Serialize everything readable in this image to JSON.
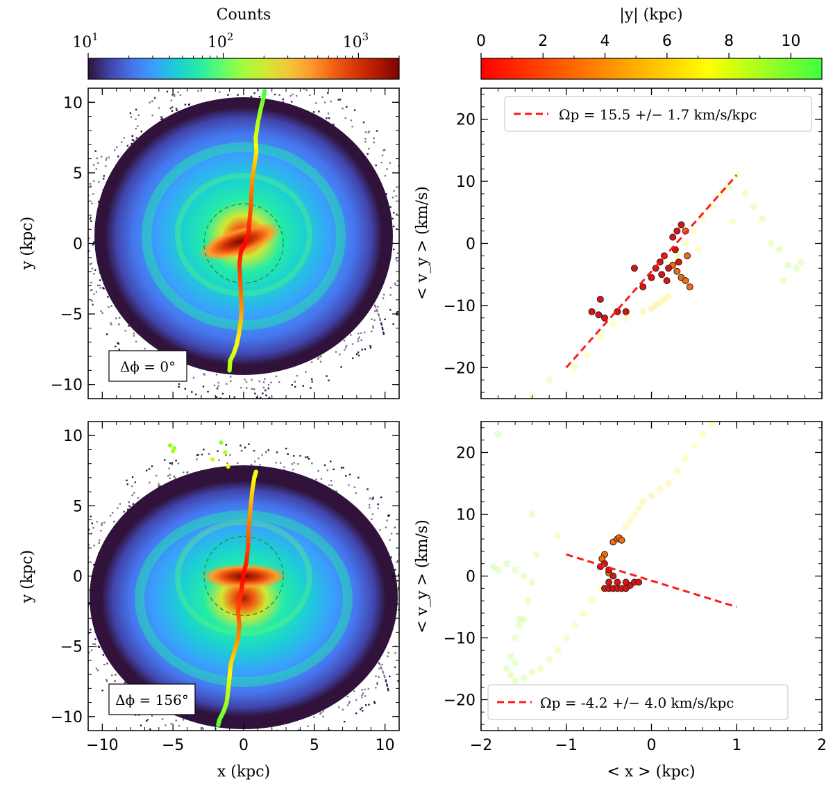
{
  "colors": {
    "counts_map": [
      "#30123b",
      "#4145ab",
      "#4675ed",
      "#39a2fc",
      "#1bcfd4",
      "#24eca6",
      "#61fc6c",
      "#a4fc3b",
      "#d1e834",
      "#f3c63a",
      "#fe9b2d",
      "#f36315",
      "#d93806",
      "#b11901",
      "#7a0402"
    ],
    "y_map": [
      "#ff0000",
      "#ff8000",
      "#ffff00",
      "#40ff40"
    ],
    "fit_line": "#ff1a1a",
    "ring": "#2e8b2e",
    "outside": "#2b1545"
  },
  "chart_data": [
    {
      "type": "heatmap",
      "panel": "top-left",
      "xlabel": "x (kpc)",
      "ylabel": "y (kpc)",
      "xlim": [
        -11,
        11
      ],
      "ylim": [
        -11,
        11
      ],
      "xticks": [
        "−10",
        "−5",
        "0",
        "5",
        "10"
      ],
      "yticks": [
        "−10",
        "−5",
        "0",
        "5",
        "10"
      ],
      "annotation": "Δϕ = 0°",
      "colorbar": {
        "title": "Counts",
        "scale": "log",
        "range": [
          10,
          2000
        ],
        "ticks": [
          "10",
          "10",
          "10"
        ],
        "tick_exponents": [
          "1",
          "2",
          "3"
        ]
      },
      "ring_radius_kpc": 2.8,
      "ridge": [
        [
          -1.0,
          -9.0
        ],
        [
          -0.95,
          -8.3
        ],
        [
          -0.7,
          -7.8
        ],
        [
          -0.5,
          -7.2
        ],
        [
          -0.35,
          -6.5
        ],
        [
          -0.2,
          -5.5
        ],
        [
          -0.15,
          -4.5
        ],
        [
          -0.2,
          -3.5
        ],
        [
          -0.25,
          -2.5
        ],
        [
          -0.3,
          -1.5
        ],
        [
          -0.2,
          -0.6
        ],
        [
          0.1,
          0.0
        ],
        [
          0.35,
          0.7
        ],
        [
          0.4,
          1.5
        ],
        [
          0.5,
          2.5
        ],
        [
          0.55,
          3.5
        ],
        [
          0.6,
          4.5
        ],
        [
          0.75,
          5.5
        ],
        [
          0.9,
          6.5
        ],
        [
          0.85,
          7.5
        ],
        [
          1.0,
          8.5
        ],
        [
          1.2,
          9.5
        ],
        [
          1.4,
          10.3
        ],
        [
          1.5,
          10.9
        ]
      ]
    },
    {
      "type": "scatter",
      "panel": "top-right",
      "xlabel": "< x > (kpc)",
      "ylabel": "< v_y > (km/s)",
      "xlim": [
        -2,
        2
      ],
      "ylim": [
        -25,
        25
      ],
      "yticks": [
        "−20",
        "−10",
        "0",
        "10",
        "20"
      ],
      "colorbar": {
        "title": "|y| (kpc)",
        "range": [
          0,
          11
        ],
        "ticks": [
          "0",
          "2",
          "4",
          "6",
          "8",
          "10"
        ]
      },
      "legend": {
        "text": "Ωp = 15.5 +/−  1.7 km/s/kpc",
        "position": "top-right"
      },
      "fit": {
        "slope": 15.5,
        "error": 1.7,
        "x": [
          -1.0,
          1.0
        ],
        "y": [
          -20.0,
          11.0
        ]
      },
      "points_inner": [
        [
          -0.7,
          -11
        ],
        [
          -0.62,
          -11.5
        ],
        [
          -0.55,
          -12
        ],
        [
          -0.6,
          -9
        ],
        [
          -0.4,
          -11
        ],
        [
          -0.3,
          -11
        ],
        [
          -0.2,
          -4
        ],
        [
          -0.1,
          -7
        ],
        [
          0.0,
          -5.5
        ],
        [
          0.05,
          -4
        ],
        [
          0.1,
          -3
        ],
        [
          0.15,
          -2
        ],
        [
          0.2,
          -4
        ],
        [
          0.25,
          1
        ],
        [
          0.3,
          2
        ],
        [
          0.35,
          3
        ],
        [
          0.28,
          -1
        ],
        [
          0.32,
          -3
        ],
        [
          0.18,
          -6
        ],
        [
          0.12,
          -5
        ]
      ],
      "points_mid": [
        [
          0.25,
          -3.5
        ],
        [
          0.3,
          -4.5
        ],
        [
          0.35,
          -5.5
        ],
        [
          0.4,
          -6
        ],
        [
          0.45,
          -7
        ],
        [
          0.4,
          2
        ],
        [
          0.42,
          -2
        ]
      ],
      "points_outer": [
        [
          -0.1,
          -11
        ],
        [
          0.0,
          -10.5
        ],
        [
          0.05,
          -10
        ],
        [
          0.1,
          -9.5
        ],
        [
          0.15,
          -9
        ],
        [
          0.2,
          -8.5
        ],
        [
          -0.3,
          -12
        ],
        [
          -0.45,
          -13
        ],
        [
          -0.6,
          -15
        ],
        [
          -0.75,
          -18
        ],
        [
          -0.9,
          -20
        ],
        [
          -1.2,
          -22
        ],
        [
          -1.4,
          -24.5
        ],
        [
          0.4,
          0
        ],
        [
          0.5,
          2
        ],
        [
          0.6,
          4
        ],
        [
          0.7,
          6
        ],
        [
          0.8,
          8
        ],
        [
          0.9,
          9
        ],
        [
          1.0,
          11
        ],
        [
          1.1,
          8
        ],
        [
          1.2,
          6
        ],
        [
          1.3,
          4
        ],
        [
          1.4,
          0
        ],
        [
          1.5,
          -1
        ],
        [
          1.6,
          -3.5
        ],
        [
          1.7,
          -4
        ],
        [
          1.75,
          -3
        ],
        [
          1.55,
          -6
        ],
        [
          0.95,
          3.5
        ],
        [
          0.3,
          -2
        ],
        [
          0.55,
          -1
        ]
      ]
    },
    {
      "type": "heatmap",
      "panel": "bottom-left",
      "xlabel": "x (kpc)",
      "ylabel": "y (kpc)",
      "xlim": [
        -11,
        11
      ],
      "ylim": [
        -11,
        11
      ],
      "xticks": [
        "−10",
        "−5",
        "0",
        "5",
        "10"
      ],
      "yticks": [
        "−10",
        "−5",
        "0",
        "5",
        "10"
      ],
      "annotation": "Δϕ = 156°",
      "ring_radius_kpc": 2.8,
      "ridge": [
        [
          -1.8,
          -10.6
        ],
        [
          -1.7,
          -10.2
        ],
        [
          -1.4,
          -9.6
        ],
        [
          -1.2,
          -9.0
        ],
        [
          -1.1,
          -8.2
        ],
        [
          -1.0,
          -7.2
        ],
        [
          -0.9,
          -6.2
        ],
        [
          -0.6,
          -5.2
        ],
        [
          -0.4,
          -4.5
        ],
        [
          -0.3,
          -3.5
        ],
        [
          -0.4,
          -2.5
        ],
        [
          -0.25,
          -1.5
        ],
        [
          -0.1,
          -0.6
        ],
        [
          0.0,
          0.2
        ],
        [
          0.2,
          1.0
        ],
        [
          0.3,
          2.0
        ],
        [
          0.35,
          3.0
        ],
        [
          0.4,
          4.0
        ],
        [
          0.5,
          5.0
        ],
        [
          0.6,
          6.0
        ],
        [
          0.75,
          7.0
        ],
        [
          0.9,
          7.5
        ]
      ],
      "stray_points": [
        [
          -5.2,
          9.3
        ],
        [
          -4.9,
          9.1
        ],
        [
          -5.0,
          8.9
        ],
        [
          -1.6,
          9.5
        ],
        [
          -1.3,
          8.8
        ],
        [
          -2.2,
          8.3
        ],
        [
          -1.1,
          7.8
        ]
      ]
    },
    {
      "type": "scatter",
      "panel": "bottom-right",
      "xlabel": "< x > (kpc)",
      "ylabel": "< v_y > (km/s)",
      "xlim": [
        -2,
        2
      ],
      "ylim": [
        -25,
        25
      ],
      "xticks": [
        "−2",
        "−1",
        "0",
        "1",
        "2"
      ],
      "yticks": [
        "−20",
        "−10",
        "0",
        "10",
        "20"
      ],
      "legend": {
        "text": "Ωp = -4.2 +/−  4.0 km/s/kpc",
        "position": "bottom-right"
      },
      "fit": {
        "slope": -4.2,
        "error": 4.0,
        "x": [
          -1.0,
          1.0
        ],
        "y": [
          3.5,
          -5.0
        ]
      },
      "points_inner": [
        [
          -0.6,
          1.5
        ],
        [
          -0.55,
          2
        ],
        [
          -0.5,
          1
        ],
        [
          -0.45,
          0
        ],
        [
          -0.5,
          -1
        ],
        [
          -0.55,
          -2
        ],
        [
          -0.5,
          -2
        ],
        [
          -0.45,
          -2
        ],
        [
          -0.4,
          -2
        ],
        [
          -0.35,
          -2
        ],
        [
          -0.3,
          -2
        ],
        [
          -0.25,
          -1.5
        ],
        [
          -0.2,
          -1
        ],
        [
          -0.15,
          -1
        ],
        [
          -0.4,
          -1
        ],
        [
          -0.3,
          -1
        ]
      ],
      "points_mid": [
        [
          -0.55,
          3.5
        ],
        [
          -0.58,
          2.8
        ],
        [
          -0.45,
          5.5
        ],
        [
          -0.4,
          6
        ],
        [
          -0.38,
          6.2
        ],
        [
          -0.35,
          5.8
        ],
        [
          -0.5,
          0.5
        ]
      ],
      "points_outer": [
        [
          -0.3,
          8
        ],
        [
          -0.25,
          9
        ],
        [
          -0.2,
          10
        ],
        [
          -0.15,
          11
        ],
        [
          -0.1,
          12
        ],
        [
          0.0,
          13
        ],
        [
          0.1,
          14
        ],
        [
          0.2,
          15
        ],
        [
          0.3,
          17
        ],
        [
          0.4,
          19
        ],
        [
          0.5,
          21
        ],
        [
          0.6,
          23
        ],
        [
          0.7,
          24.5
        ],
        [
          -0.6,
          -2
        ],
        [
          -0.7,
          -4
        ],
        [
          -0.8,
          -6
        ],
        [
          -0.9,
          -8
        ],
        [
          -1.0,
          -10
        ],
        [
          -1.1,
          -12
        ],
        [
          -1.2,
          -13.5
        ],
        [
          -1.3,
          -15
        ],
        [
          -1.4,
          -15.5
        ],
        [
          -1.5,
          -16.5
        ],
        [
          -1.6,
          -17
        ],
        [
          -1.65,
          -16
        ],
        [
          -1.7,
          -15
        ],
        [
          -1.65,
          -13
        ],
        [
          -1.6,
          -10
        ],
        [
          -1.55,
          -8
        ],
        [
          -1.5,
          -7
        ],
        [
          -1.45,
          -4
        ],
        [
          -1.4,
          -1
        ],
        [
          -1.5,
          0
        ],
        [
          -1.6,
          1
        ],
        [
          -1.7,
          2
        ],
        [
          -1.8,
          1
        ],
        [
          -1.85,
          1.5
        ],
        [
          -1.8,
          23
        ],
        [
          -1.4,
          10
        ],
        [
          -1.35,
          3.5
        ],
        [
          -1.1,
          6.5
        ],
        [
          -1.6,
          -14
        ],
        [
          -1.55,
          -7
        ]
      ]
    }
  ]
}
